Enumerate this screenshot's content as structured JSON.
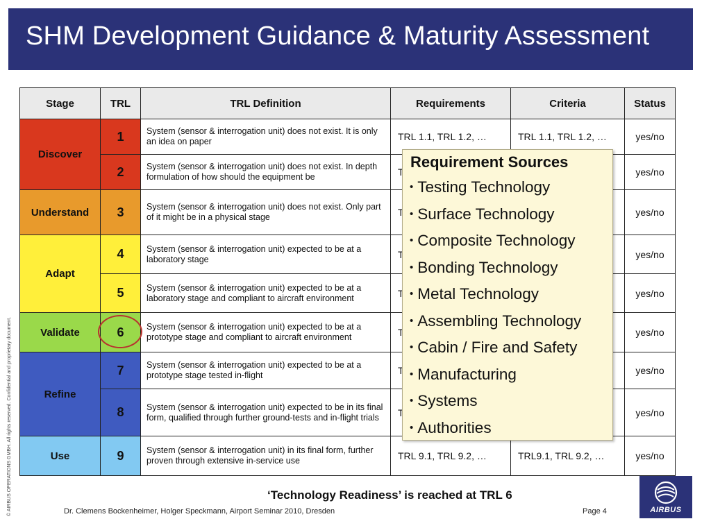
{
  "title": "SHM Development Guidance & Maturity Assessment",
  "table": {
    "headers": {
      "stage": "Stage",
      "trl": "TRL",
      "definition": "TRL Definition",
      "requirements": "Requirements",
      "criteria": "Criteria",
      "status": "Status"
    },
    "stages": [
      "Discover",
      "Understand",
      "Adapt",
      "Validate",
      "Refine",
      "Use"
    ],
    "rows": [
      {
        "trl": "1",
        "definition": "System (sensor & interrogation unit) does not exist. It is only an idea on paper",
        "requirements": "TRL 1.1, TRL 1.2, …",
        "criteria": "TRL 1.1, TRL 1.2, …",
        "status": "yes/no"
      },
      {
        "trl": "2",
        "definition": "System (sensor & interrogation unit) does not exist. In depth formulation of how should the equipment be",
        "requirements": "T",
        "criteria": "",
        "status": "yes/no"
      },
      {
        "trl": "3",
        "definition": "System (sensor & interrogation unit) does not exist. Only part of it might be in a physical stage",
        "requirements": "T",
        "criteria": "",
        "status": "yes/no"
      },
      {
        "trl": "4",
        "definition": "System (sensor & interrogation unit) expected to be at a laboratory stage",
        "requirements": "T",
        "criteria": "",
        "status": "yes/no"
      },
      {
        "trl": "5",
        "definition": "System (sensor & interrogation unit) expected to be at a laboratory stage and compliant to aircraft environment",
        "requirements": "T",
        "criteria": "",
        "status": "yes/no"
      },
      {
        "trl": "6",
        "definition": "System (sensor & interrogation unit) expected to be at a prototype stage and compliant to aircraft environment",
        "requirements": "T",
        "criteria": "",
        "status": "yes/no"
      },
      {
        "trl": "7",
        "definition": "System (sensor & interrogation unit) expected to be at a prototype stage tested in-flight",
        "requirements": "T",
        "criteria": "",
        "status": "yes/no"
      },
      {
        "trl": "8",
        "definition": "System (sensor & interrogation unit) expected to be in its final form, qualified through further ground-tests and in-flight trials",
        "requirements": "T",
        "criteria": "",
        "status": "yes/no"
      },
      {
        "trl": "9",
        "definition": "System (sensor & interrogation unit) in its final form, further proven through extensive in-service use",
        "requirements": "TRL 9.1, TRL 9.2, …",
        "criteria": "TRL9.1, TRL 9.2, …",
        "status": "yes/no"
      }
    ]
  },
  "overlay": {
    "title": "Requirement Sources",
    "bullet": "•",
    "items": [
      "Testing Technology",
      "Surface Technology",
      "Composite Technology",
      "Bonding Technology",
      "Metal Technology",
      "Assembling Technology",
      "Cabin / Fire and Safety",
      "Manufacturing",
      "Systems",
      "Authorities"
    ]
  },
  "footer": {
    "main": "‘Technology Readiness’ is reached at TRL 6",
    "authors": "Dr. Clemens Bockenheimer, Holger Speckmann, Airport Seminar 2010, Dresden",
    "page": "Page 4",
    "copyright": "© AIRBUS OPERATIONS GMBH. All rights reserved. Confidential and proprietary document.",
    "logo": "AIRBUS"
  },
  "colors": {
    "title_bar": "#2b3278",
    "discover": "#d9381e",
    "understand": "#e89a2c",
    "adapt": "#ffef3a",
    "validate": "#9ad94a",
    "refine": "#3f5bc0",
    "use": "#82c9f2",
    "highlight_ring": "#b8322f",
    "overlay_bg": "#fdf8d8"
  },
  "icons": {
    "logo": "airbus-logo-icon",
    "ring": "highlight-circle-icon"
  }
}
